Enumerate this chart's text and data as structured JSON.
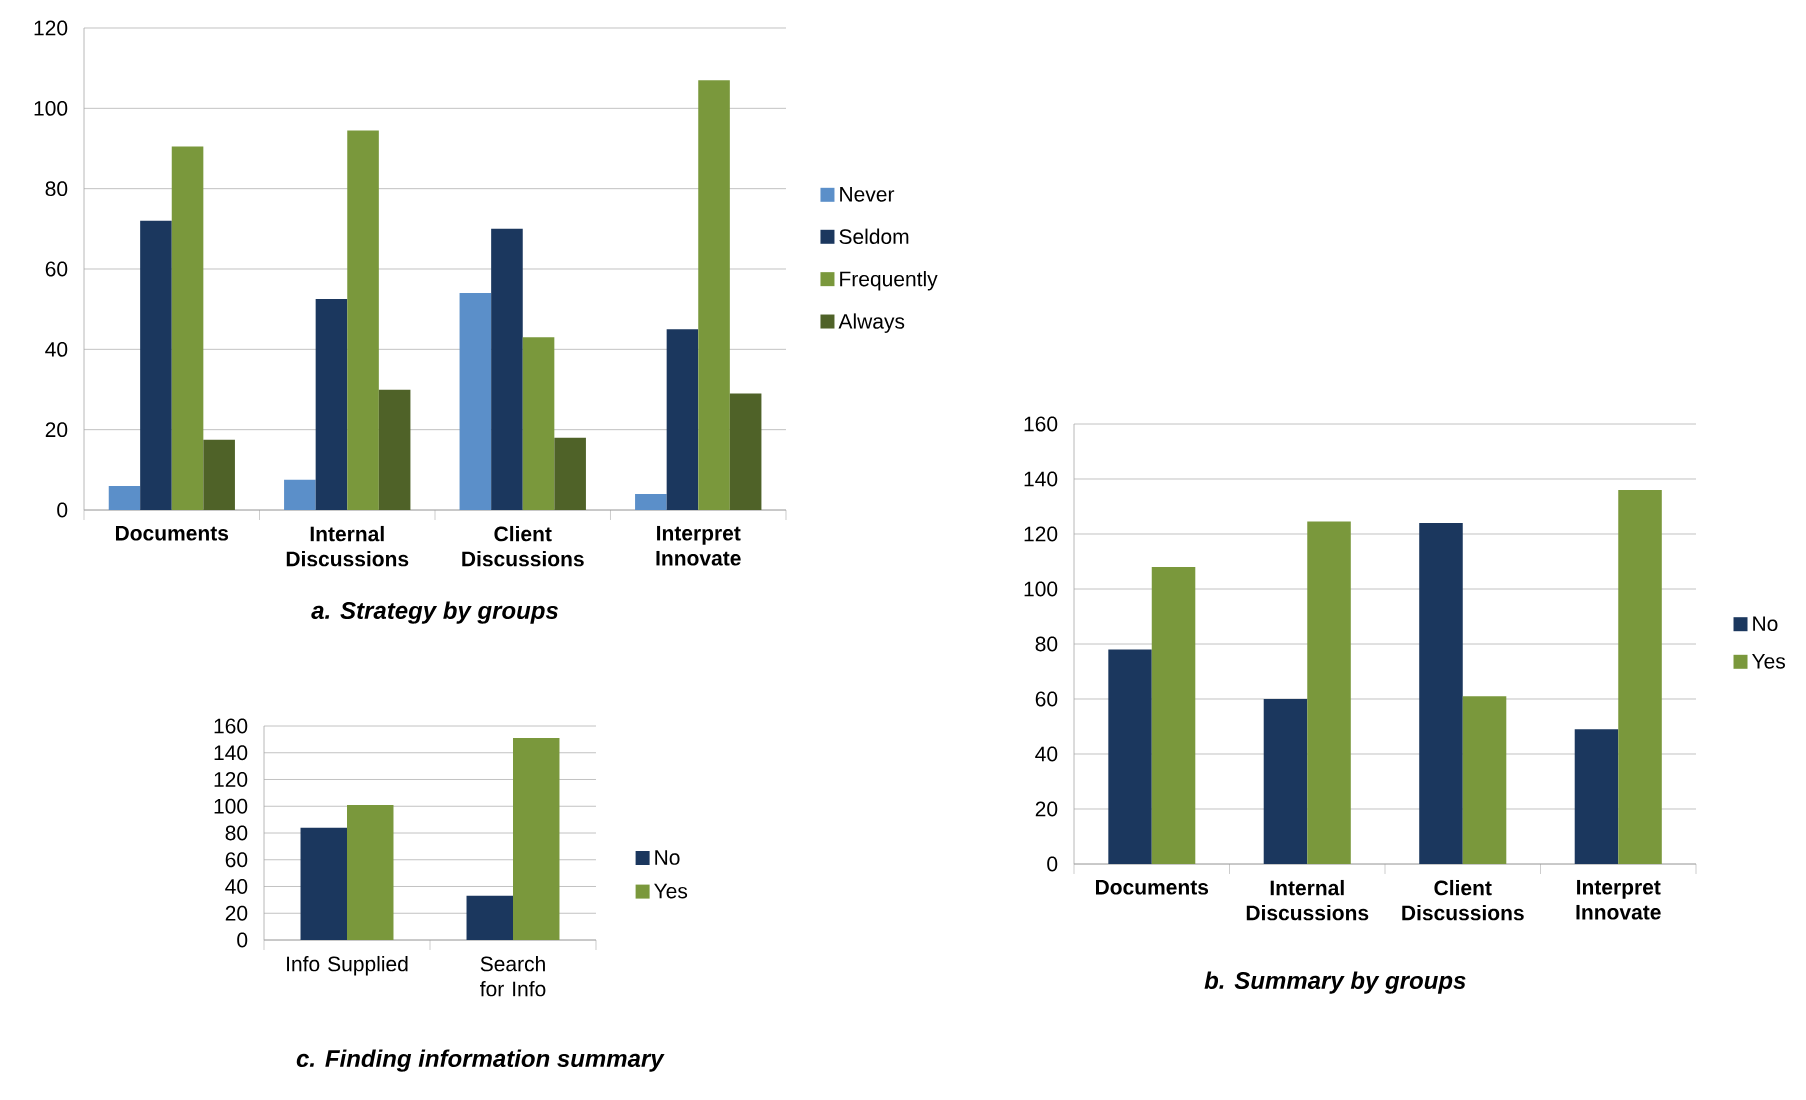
{
  "chart_data": [
    {
      "type": "bar",
      "title": "a. Strategy by groups",
      "categories": [
        "Documents",
        "Internal Discussions",
        "Client Discussions",
        "Interpret Innovate"
      ],
      "series": [
        {
          "name": "Never",
          "color": "#5b8fc9",
          "values": [
            6,
            7.5,
            54,
            4
          ]
        },
        {
          "name": "Seldom",
          "color": "#1b375e",
          "values": [
            72,
            52.5,
            70,
            45
          ]
        },
        {
          "name": "Frequently",
          "color": "#7a983c",
          "values": [
            90.5,
            94.5,
            43,
            107
          ]
        },
        {
          "name": "Always",
          "color": "#4f6228",
          "values": [
            17.5,
            30,
            18,
            29
          ]
        }
      ],
      "ylim": [
        0,
        120
      ],
      "yticks": [
        0,
        20,
        40,
        60,
        80,
        100,
        120
      ],
      "grid": "y",
      "legend": "right"
    },
    {
      "type": "bar",
      "title": "b. Summary by groups",
      "categories": [
        "Documents",
        "Internal Discussions",
        "Client Discussions",
        "Interpret Innovate"
      ],
      "series": [
        {
          "name": "No",
          "color": "#1b375e",
          "values": [
            78,
            60,
            124,
            49
          ]
        },
        {
          "name": "Yes",
          "color": "#7a983c",
          "values": [
            108,
            124.5,
            61,
            136
          ]
        }
      ],
      "ylim": [
        0,
        160
      ],
      "yticks": [
        0,
        20,
        40,
        60,
        80,
        100,
        120,
        140,
        160
      ],
      "grid": "y",
      "legend": "right"
    },
    {
      "type": "bar",
      "title": "c. Finding information summary",
      "categories": [
        "Info Supplied",
        "Search for Info"
      ],
      "series": [
        {
          "name": "No",
          "color": "#1b375e",
          "values": [
            84,
            33
          ]
        },
        {
          "name": "Yes",
          "color": "#7a983c",
          "values": [
            101,
            151
          ]
        }
      ],
      "ylim": [
        0,
        160
      ],
      "yticks": [
        0,
        20,
        40,
        60,
        80,
        100,
        120,
        140,
        160
      ],
      "grid": "y",
      "legend": "right"
    }
  ]
}
